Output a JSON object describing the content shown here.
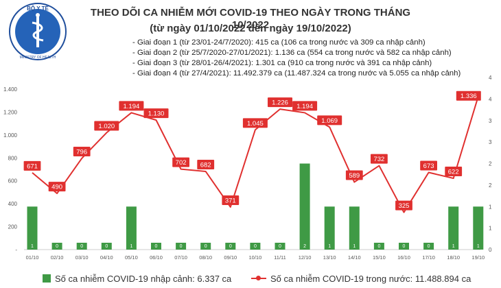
{
  "header": {
    "title_line1": "THEO DÕI CA NHIỄM MỚI COVID-19 THEO NGÀY TRONG THÁNG 10/2022",
    "title_line2": "(từ ngày 01/10/2022 đến ngày 19/10/2022)",
    "phases": [
      "- Giai đoạn 1 (từ 23/01-24/7/2020): 415 ca (106 ca trong nước và 309 ca nhập cảnh)",
      "- Giai đoạn 2 (từ 25/7/2020-27/01/2021): 1.136 ca (554 ca trong nước và 582 ca nhập cảnh)",
      "- Giai đoạn 3 (từ 28/01-26/4/2021): 1.301 ca (910 ca trong nước và 391 ca nhập cảnh)",
      "- Giai đoạn 4 (từ 27/4/2021): 11.492.379 ca (11.487.324 ca trong nước và 5.055 ca nhập cảnh)"
    ],
    "logo_text": "BỘ Y TẾ",
    "logo_subtext": "MINISTRY OF HEALTH"
  },
  "colors": {
    "bar": "#3f9a45",
    "line": "#e0302f",
    "title": "#333333",
    "axis_text": "#555555"
  },
  "chart_data": {
    "type": "bar+line",
    "categories": [
      "01/10",
      "02/10",
      "03/10",
      "04/10",
      "05/10",
      "06/10",
      "07/10",
      "08/10",
      "09/10",
      "10/10",
      "11/11",
      "12/10",
      "13/10",
      "14/10",
      "15/10",
      "16/10",
      "17/10",
      "18/10",
      "19/10"
    ],
    "series": [
      {
        "name": "Số ca nhiễm COVID-19 nhập cảnh: 6.337 ca",
        "type": "bar",
        "axis": "right",
        "values": [
          1,
          0,
          0,
          0,
          1,
          0,
          0,
          0,
          0,
          0,
          0,
          2,
          1,
          1,
          0,
          0,
          0,
          1,
          1
        ],
        "labels": [
          "1",
          "0",
          "0",
          "0",
          "1",
          "0",
          "0",
          "0",
          "0",
          "0",
          "0",
          "2",
          "1",
          "1",
          "0",
          "0",
          "0",
          "1",
          "1"
        ]
      },
      {
        "name": "Số ca nhiễm COVID-19 trong nước: 11.488.894 ca",
        "type": "line",
        "axis": "left",
        "values": [
          671,
          490,
          796,
          1020,
          1194,
          1130,
          702,
          682,
          371,
          1045,
          1226,
          1194,
          1069,
          589,
          732,
          325,
          673,
          622,
          1336
        ],
        "labels": [
          "671",
          "490",
          "796",
          "1.020",
          "1.194",
          "1.130",
          "702",
          "682",
          "371",
          "1.045",
          "1.226",
          "1.194",
          "1.069",
          "589",
          "732",
          "325",
          "673",
          "622",
          "1.336"
        ]
      }
    ],
    "y_left": {
      "ticks": [
        "-",
        "200",
        "400",
        "600",
        "800",
        "1.000",
        "1.200",
        "1.400"
      ],
      "range": [
        0,
        1400
      ]
    },
    "y_right": {
      "ticks": [
        "0",
        "1",
        "1",
        "2",
        "2",
        "3",
        "3",
        "4",
        "4"
      ],
      "range": [
        0,
        4
      ]
    },
    "grid": false,
    "legend_position": "bottom"
  }
}
